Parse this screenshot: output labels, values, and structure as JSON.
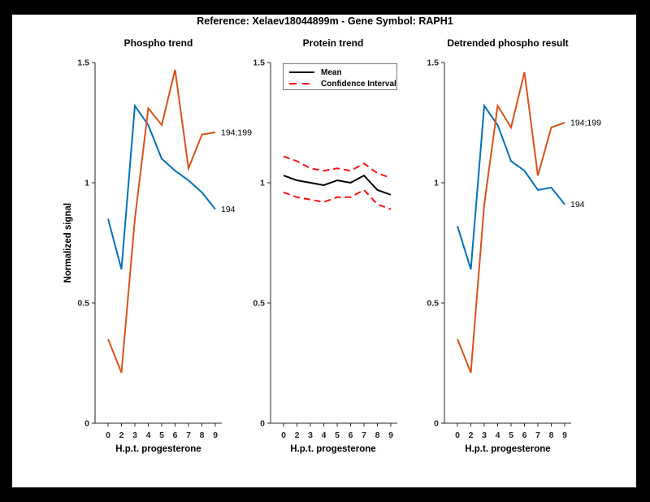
{
  "window": {
    "frame_color": "#000000"
  },
  "figure": {
    "title": "Reference:  Xelaev18044899m - Gene Symbol:  RAPH1",
    "background": "#ffffff"
  },
  "shared_axes": {
    "ylabel": "Normalized signal",
    "xlabel": "H.p.t. progesterone",
    "ylim": [
      0,
      1.5
    ],
    "ytick_labels": [
      "0",
      "0.5",
      "1",
      "1.5"
    ],
    "xtick_labels": [
      "0",
      "2",
      "3",
      "4",
      "5",
      "6",
      "7",
      "8",
      "9"
    ],
    "grid": false,
    "axis_color": "#262626"
  },
  "colors": {
    "phospho_blue": "#0072BD",
    "phospho_orange": "#D95319",
    "mean_black": "#000000",
    "ci_red": "#ff0f0f"
  },
  "chart_data": [
    {
      "type": "line",
      "title": "Phospho trend",
      "xlabel": "H.p.t. progesterone",
      "ylabel": "Normalized signal",
      "categories": [
        "0",
        "2",
        "3",
        "4",
        "5",
        "6",
        "7",
        "8",
        "9"
      ],
      "ylim": [
        0,
        1.5
      ],
      "series": [
        {
          "name": "194",
          "color": "#0072BD",
          "style": "solid",
          "end_label": "194",
          "values": [
            0.85,
            0.64,
            1.32,
            1.24,
            1.1,
            1.05,
            1.01,
            0.96,
            0.89
          ]
        },
        {
          "name": "194;199",
          "color": "#D95319",
          "style": "solid",
          "end_label": "194;199",
          "values": [
            0.35,
            0.21,
            0.85,
            1.31,
            1.24,
            1.47,
            1.06,
            1.2,
            1.21
          ]
        }
      ]
    },
    {
      "type": "line",
      "title": "Protein trend",
      "xlabel": "H.p.t. progesterone",
      "categories": [
        "0",
        "2",
        "3",
        "4",
        "5",
        "6",
        "7",
        "8",
        "9"
      ],
      "ylim": [
        0,
        1.5
      ],
      "legend": [
        "Mean",
        "Confidence Interval"
      ],
      "legend_position": "top-left",
      "series": [
        {
          "name": "Mean",
          "color": "#000000",
          "style": "solid",
          "values": [
            1.03,
            1.01,
            1.0,
            0.99,
            1.01,
            1.0,
            1.03,
            0.97,
            0.95
          ]
        },
        {
          "name": "Confidence Interval upper",
          "color": "#ff0f0f",
          "style": "dashed",
          "values": [
            1.11,
            1.09,
            1.06,
            1.05,
            1.06,
            1.05,
            1.08,
            1.04,
            1.02
          ]
        },
        {
          "name": "Confidence Interval lower",
          "color": "#ff0f0f",
          "style": "dashed",
          "values": [
            0.96,
            0.94,
            0.93,
            0.92,
            0.94,
            0.94,
            0.97,
            0.91,
            0.89
          ]
        }
      ]
    },
    {
      "type": "line",
      "title": "Detrended phospho result",
      "xlabel": "H.p.t. progesterone",
      "categories": [
        "0",
        "2",
        "3",
        "4",
        "5",
        "6",
        "7",
        "8",
        "9"
      ],
      "ylim": [
        0,
        1.5
      ],
      "series": [
        {
          "name": "194",
          "color": "#0072BD",
          "style": "solid",
          "end_label": "194",
          "values": [
            0.82,
            0.64,
            1.32,
            1.24,
            1.09,
            1.05,
            0.97,
            0.98,
            0.91
          ]
        },
        {
          "name": "194;199",
          "color": "#D95319",
          "style": "solid",
          "end_label": "194;199",
          "values": [
            0.35,
            0.21,
            0.91,
            1.32,
            1.23,
            1.46,
            1.03,
            1.23,
            1.25
          ]
        }
      ]
    }
  ]
}
